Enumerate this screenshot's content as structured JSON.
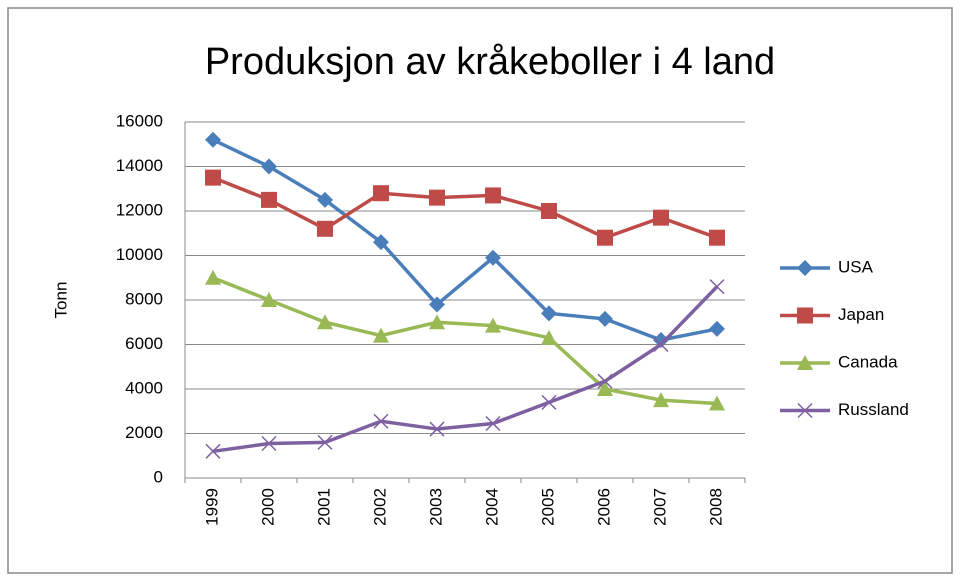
{
  "chart_data": {
    "type": "line",
    "title": "Produksjon av kråkeboller i 4 land",
    "y_label": "Tonn",
    "categories": [
      "1999",
      "2000",
      "2001",
      "2002",
      "2003",
      "2004",
      "2005",
      "2006",
      "2007",
      "2008"
    ],
    "series": [
      {
        "name": "USA",
        "color": "#4a7ebb",
        "marker": "diamond",
        "values": [
          15200,
          14000,
          12500,
          10600,
          7800,
          9900,
          7400,
          7150,
          6200,
          6700
        ]
      },
      {
        "name": "Japan",
        "color": "#be4b48",
        "marker": "square",
        "values": [
          13500,
          12500,
          11200,
          12800,
          12600,
          12700,
          12000,
          10800,
          11700,
          10800
        ]
      },
      {
        "name": "Canada",
        "color": "#98b954",
        "marker": "triangle",
        "values": [
          9000,
          8000,
          7000,
          6400,
          7000,
          6850,
          6300,
          4000,
          3500,
          3350
        ]
      },
      {
        "name": "Russland",
        "color": "#7d60a0",
        "marker": "x",
        "values": [
          1200,
          1550,
          1600,
          2550,
          2200,
          2450,
          3400,
          4350,
          6000,
          8600
        ]
      }
    ],
    "ylim": [
      0,
      16000
    ],
    "yticks": [
      0,
      2000,
      4000,
      6000,
      8000,
      10000,
      12000,
      14000,
      16000
    ],
    "grid": true,
    "legend": "right"
  }
}
